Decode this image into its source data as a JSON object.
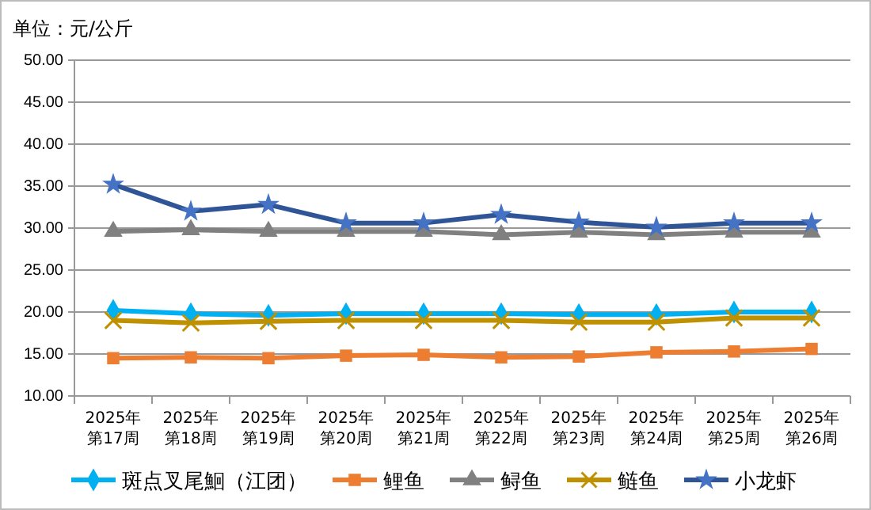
{
  "chart_data": {
    "type": "line",
    "title": "单位：元/公斤",
    "categories": [
      "2025年第17周",
      "2025年第18周",
      "2025年第19周",
      "2025年第20周",
      "2025年第21周",
      "2025年第22周",
      "2025年第23周",
      "2025年第24周",
      "2025年第25周",
      "2025年第26周"
    ],
    "series": [
      {
        "name": "斑点叉尾鮰（江团）",
        "color": "#00b0f0",
        "marker": "diamond",
        "values": [
          20.2,
          19.8,
          19.6,
          19.8,
          19.8,
          19.8,
          19.7,
          19.7,
          20.0,
          20.0
        ]
      },
      {
        "name": "鲤鱼",
        "color": "#ed7d31",
        "marker": "square",
        "values": [
          14.5,
          14.6,
          14.5,
          14.8,
          14.9,
          14.6,
          14.7,
          15.2,
          15.3,
          15.6
        ]
      },
      {
        "name": "鲟鱼",
        "color": "#808080",
        "marker": "triangle",
        "values": [
          29.6,
          29.8,
          29.6,
          29.6,
          29.6,
          29.2,
          29.5,
          29.2,
          29.5,
          29.5
        ]
      },
      {
        "name": "鲢鱼",
        "color": "#bf9000",
        "marker": "cross",
        "values": [
          19.0,
          18.7,
          18.9,
          19.0,
          19.0,
          19.0,
          18.8,
          18.8,
          19.3,
          19.3
        ]
      },
      {
        "name": "小龙虾",
        "color": "#2f5597",
        "marker": "star",
        "values": [
          35.2,
          32.0,
          32.8,
          30.6,
          30.6,
          31.6,
          30.7,
          30.1,
          30.6,
          30.6
        ]
      }
    ],
    "ylim": [
      10,
      50
    ],
    "yticks": [
      {
        "value": 10,
        "label": "10.00"
      },
      {
        "value": 15,
        "label": "15.00"
      },
      {
        "value": 20,
        "label": "20.00"
      },
      {
        "value": 25,
        "label": "25.00"
      },
      {
        "value": 30,
        "label": "30.00"
      },
      {
        "value": 35,
        "label": "35.00"
      },
      {
        "value": 40,
        "label": "40.00"
      },
      {
        "value": 45,
        "label": "45.00"
      },
      {
        "value": 50,
        "label": "50.00"
      }
    ],
    "grid": "y",
    "legend": "bottom",
    "line_style": "solid"
  }
}
